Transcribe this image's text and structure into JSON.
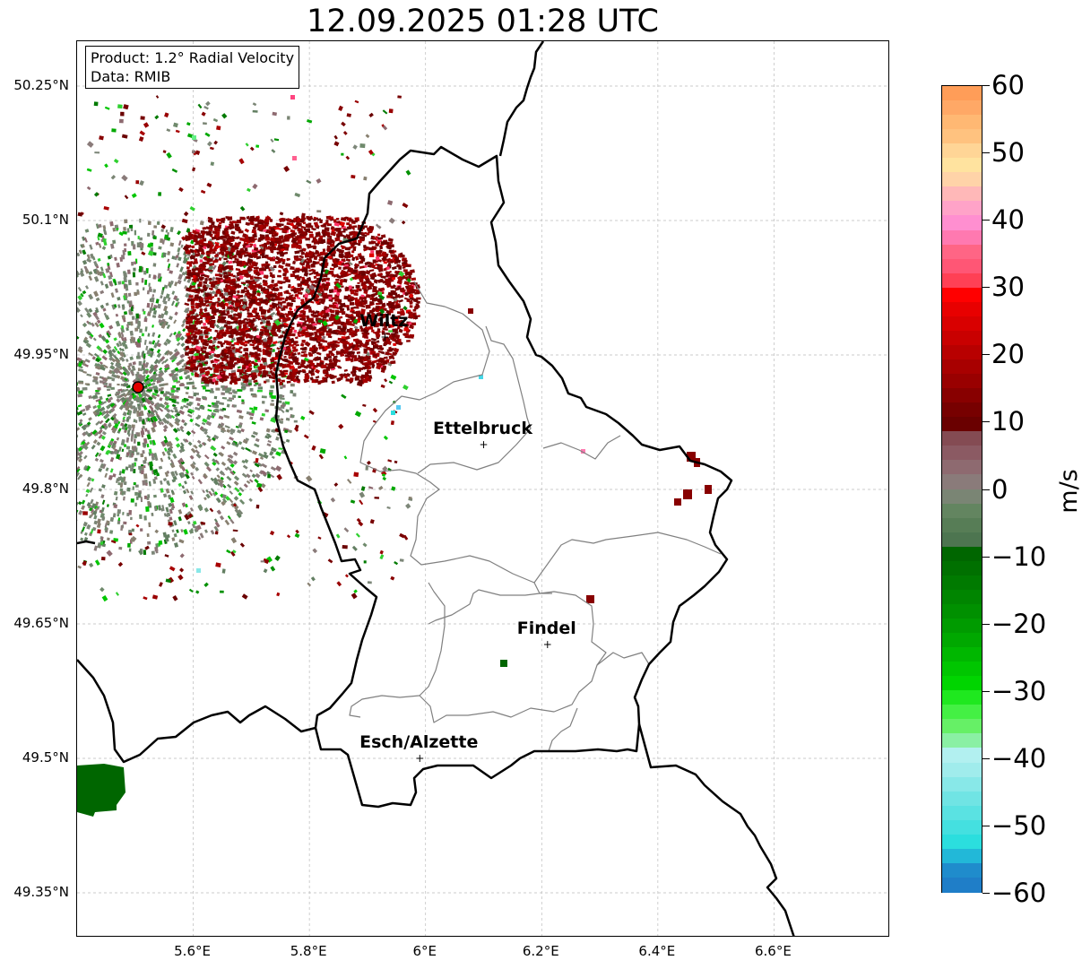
{
  "title": "12.09.2025 01:28 UTC",
  "info_box": {
    "product": "Product: 1.2° Radial Velocity",
    "data": "Data: RMIB"
  },
  "map": {
    "lat_ticks": [
      "50.25°N",
      "50.1°N",
      "49.95°N",
      "49.8°N",
      "49.65°N",
      "49.5°N",
      "49.35°N"
    ],
    "lon_ticks": [
      "5.6°E",
      "5.8°E",
      "6°E",
      "6.2°E",
      "6.4°E",
      "6.6°E"
    ],
    "extent": {
      "lon_min": 5.4,
      "lon_max": 6.8,
      "lat_min": 49.3,
      "lat_max": 50.3
    },
    "radar_site": {
      "lon": 5.505,
      "lat": 49.914
    },
    "cities": [
      {
        "name": "Wiltz",
        "lon": 5.93,
        "lat": 49.97
      },
      {
        "name": "Ettelbruck",
        "lon": 6.1,
        "lat": 49.85
      },
      {
        "name": "Findel",
        "lon": 6.21,
        "lat": 49.627
      },
      {
        "name": "Esch/Alzette",
        "lon": 5.99,
        "lat": 49.5
      }
    ],
    "colors": {
      "border": "#000000",
      "admin": "#808080",
      "grid": "#bbbbbb",
      "radar_dot": "#e00000"
    }
  },
  "colorbar": {
    "unit": "m/s",
    "ticks": [
      "60",
      "50",
      "40",
      "30",
      "20",
      "10",
      "0",
      "−10",
      "−20",
      "−30",
      "−40",
      "−50",
      "−60"
    ],
    "vmin": -60,
    "vmax": 60,
    "colors_top_to_bottom": [
      "#ff9d58",
      "#ffa866",
      "#ffb873",
      "#ffc27f",
      "#ffd596",
      "#ffe39f",
      "#ffd3a8",
      "#ffb8b8",
      "#ffa3c8",
      "#ff8fd0",
      "#ff79b0",
      "#ff6585",
      "#ff5675",
      "#ff4055",
      "#ff0000",
      "#e80000",
      "#d90000",
      "#c90000",
      "#b80000",
      "#a80000",
      "#990000",
      "#880000",
      "#770000",
      "#6a0000",
      "#844b53",
      "#8b5a63",
      "#8e6a70",
      "#8a7b7a",
      "#7a8574",
      "#638560",
      "#577d56",
      "#4d7550",
      "#006600",
      "#007000",
      "#007a00",
      "#008500",
      "#009000",
      "#009b00",
      "#00a800",
      "#00b700",
      "#00c600",
      "#00d500",
      "#1fe81f",
      "#44f044",
      "#66f066",
      "#8af0a4",
      "#b2f0f0",
      "#a0ecec",
      "#88e8e8",
      "#70e4e4",
      "#5ae2e2",
      "#44e0e0",
      "#2bdede",
      "#22b8d8",
      "#1f8ccc",
      "#1f7ec8"
    ]
  }
}
